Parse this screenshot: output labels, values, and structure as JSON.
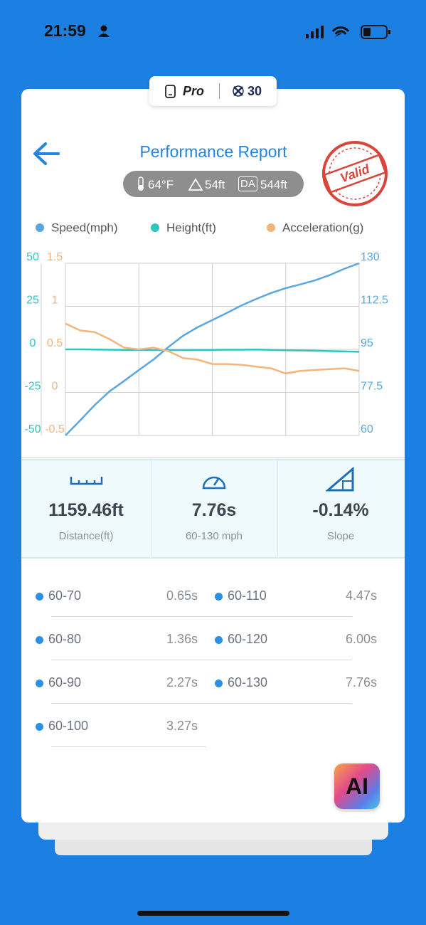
{
  "status_bar": {
    "time": "21:59"
  },
  "badge": {
    "plan": "Pro",
    "count": "30"
  },
  "header": {
    "title": "Performance Report",
    "stamp": "Valid",
    "conditions": {
      "temperature": "64°F",
      "altitude": "54ft",
      "da_label": "DA",
      "density_altitude": "544ft"
    }
  },
  "chart_data": {
    "type": "line",
    "series": [
      {
        "name": "Speed(mph)",
        "color": "#5aa7e0",
        "axis": "y2",
        "values": [
          60,
          66.1,
          72.4,
          77.9,
          82.2,
          86.6,
          90.9,
          95.9,
          100.5,
          104.0,
          106.9,
          109.8,
          112.9,
          115.5,
          117.9,
          119.9,
          121.4,
          123.1,
          125.2,
          127.8,
          130
        ]
      },
      {
        "name": "Height(ft)",
        "color": "#2ec4c0",
        "axis": "y",
        "values": [
          0,
          0,
          -0.1,
          -0.2,
          -0.3,
          -0.3,
          -0.4,
          -0.4,
          -0.4,
          -0.3,
          -0.3,
          -0.2,
          -0.2,
          -0.1,
          -0.3,
          -0.5,
          -0.6,
          -0.8,
          -1.0,
          -1.2,
          -1.4
        ]
      },
      {
        "name": "Acceleration(g)",
        "color": "#f5b47c",
        "axis": "y3",
        "values": [
          0.8,
          0.72,
          0.7,
          0.62,
          0.52,
          0.5,
          0.52,
          0.48,
          0.4,
          0.38,
          0.33,
          0.33,
          0.32,
          0.3,
          0.28,
          0.22,
          0.25,
          0.26,
          0.27,
          0.28,
          0.25
        ]
      }
    ],
    "ylim": [
      -50,
      50
    ],
    "yticks": [
      50,
      25,
      0,
      -25,
      -50
    ],
    "y3lim": [
      -0.5,
      1.5
    ],
    "y3ticks": [
      1.5,
      1,
      0.5,
      0,
      -0.5
    ],
    "y2lim": [
      60,
      130
    ],
    "y2ticks": [
      130,
      112.5,
      95,
      77.5,
      60
    ],
    "grid": true
  },
  "stats": [
    {
      "value": "1159.46ft",
      "label": "Distance(ft)"
    },
    {
      "value": "7.76s",
      "label": "60-130 mph"
    },
    {
      "value": "-0.14%",
      "label": "Slope"
    }
  ],
  "splits": [
    {
      "label": "60-70",
      "time": "0.65s"
    },
    {
      "label": "60-80",
      "time": "1.36s"
    },
    {
      "label": "60-90",
      "time": "2.27s"
    },
    {
      "label": "60-100",
      "time": "3.27s"
    },
    {
      "label": "60-110",
      "time": "4.47s"
    },
    {
      "label": "60-120",
      "time": "6.00s"
    },
    {
      "label": "60-130",
      "time": "7.76s"
    }
  ],
  "ai_button": "AI"
}
